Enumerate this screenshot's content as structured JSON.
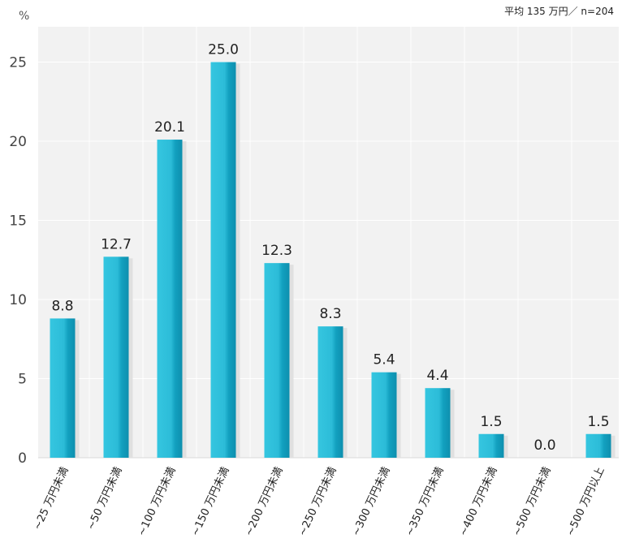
{
  "chart_data": {
    "type": "bar",
    "unit": "%",
    "note": "平均 135 万円／ n=204",
    "ylim": [
      0,
      27
    ],
    "yticks": [
      0,
      5,
      10,
      15,
      20,
      25
    ],
    "grid": true,
    "categories": [
      "~25 万円未満",
      "~50 万円未満",
      "~100 万円未満",
      "~150 万円未満",
      "~200 万円未満",
      "~250 万円未満",
      "~300 万円未満",
      "~350 万円未満",
      "~400 万円未満",
      "~500 万円未満",
      "~500 万円以上"
    ],
    "values": [
      8.8,
      12.7,
      20.1,
      25.0,
      12.3,
      8.3,
      5.4,
      4.4,
      1.5,
      0.0,
      1.5
    ],
    "value_labels": [
      "8.8",
      "12.7",
      "20.1",
      "25.0",
      "12.3",
      "8.3",
      "5.4",
      "4.4",
      "1.5",
      "0.0",
      "1.5"
    ],
    "colors": {
      "bar_light": "#35c6e0",
      "bar_dark": "#0e8fae",
      "plot_bg": "#f2f2f2",
      "gridline": "#ffffff"
    }
  }
}
